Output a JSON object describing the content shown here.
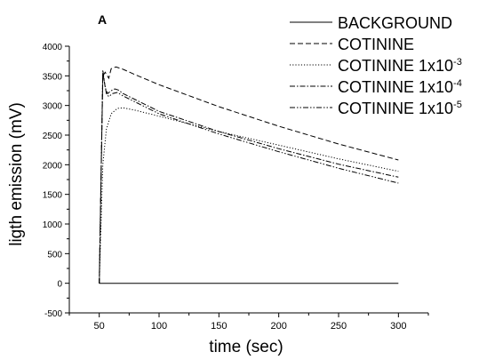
{
  "chart_data": {
    "type": "line",
    "panel_label": "A",
    "xlabel": "time (sec)",
    "ylabel": "ligth emission (mV)",
    "xlim": [
      25,
      325
    ],
    "ylim": [
      -500,
      4000
    ],
    "xticks": [
      50,
      100,
      150,
      200,
      250,
      300
    ],
    "yticks": [
      -500,
      0,
      500,
      1000,
      1500,
      2000,
      2500,
      3000,
      3500,
      4000
    ],
    "grid": false,
    "legend_position": "top-right",
    "series": [
      {
        "name": "BACKGROUND",
        "dash": "solid",
        "x": [
          50,
          300
        ],
        "y": [
          0,
          0
        ]
      },
      {
        "name": "COTININE",
        "dash": "dashed",
        "x": [
          50,
          53,
          55,
          58,
          60,
          64,
          70,
          80,
          100,
          150,
          200,
          250,
          300
        ],
        "y": [
          0,
          3500,
          3560,
          3460,
          3620,
          3650,
          3610,
          3520,
          3350,
          2980,
          2650,
          2350,
          2080
        ]
      },
      {
        "name": "COTININE 1x10",
        "dash": "dotted",
        "x": [
          50,
          53,
          56,
          60,
          65,
          70,
          80,
          100,
          150,
          200,
          250,
          300
        ],
        "y": [
          0,
          2000,
          2600,
          2860,
          2950,
          2960,
          2920,
          2820,
          2560,
          2330,
          2100,
          1890
        ]
      },
      {
        "name": "COTININE 1x10",
        "dash": "dashdot",
        "x": [
          50,
          53,
          55,
          57,
          60,
          63,
          66,
          70,
          80,
          100,
          150,
          200,
          250,
          300
        ],
        "y": [
          0,
          3600,
          3300,
          3200,
          3250,
          3280,
          3260,
          3200,
          3100,
          2900,
          2560,
          2270,
          2010,
          1790
        ]
      },
      {
        "name": "COTININE 1x10",
        "dash": "dashdotdot",
        "x": [
          50,
          53,
          56,
          58,
          61,
          65,
          70,
          80,
          100,
          150,
          200,
          250,
          300
        ],
        "y": [
          0,
          3550,
          3200,
          3150,
          3200,
          3220,
          3160,
          3060,
          2860,
          2520,
          2220,
          1940,
          1690
        ]
      }
    ]
  },
  "legend": [
    {
      "text": "BACKGROUND",
      "sup": ""
    },
    {
      "text": "COTININE",
      "sup": ""
    },
    {
      "text": "COTININE 1x10",
      "sup": "-3"
    },
    {
      "text": "COTININE 1x10",
      "sup": "-4"
    },
    {
      "text": "COTININE 1x10",
      "sup": "-5"
    }
  ]
}
